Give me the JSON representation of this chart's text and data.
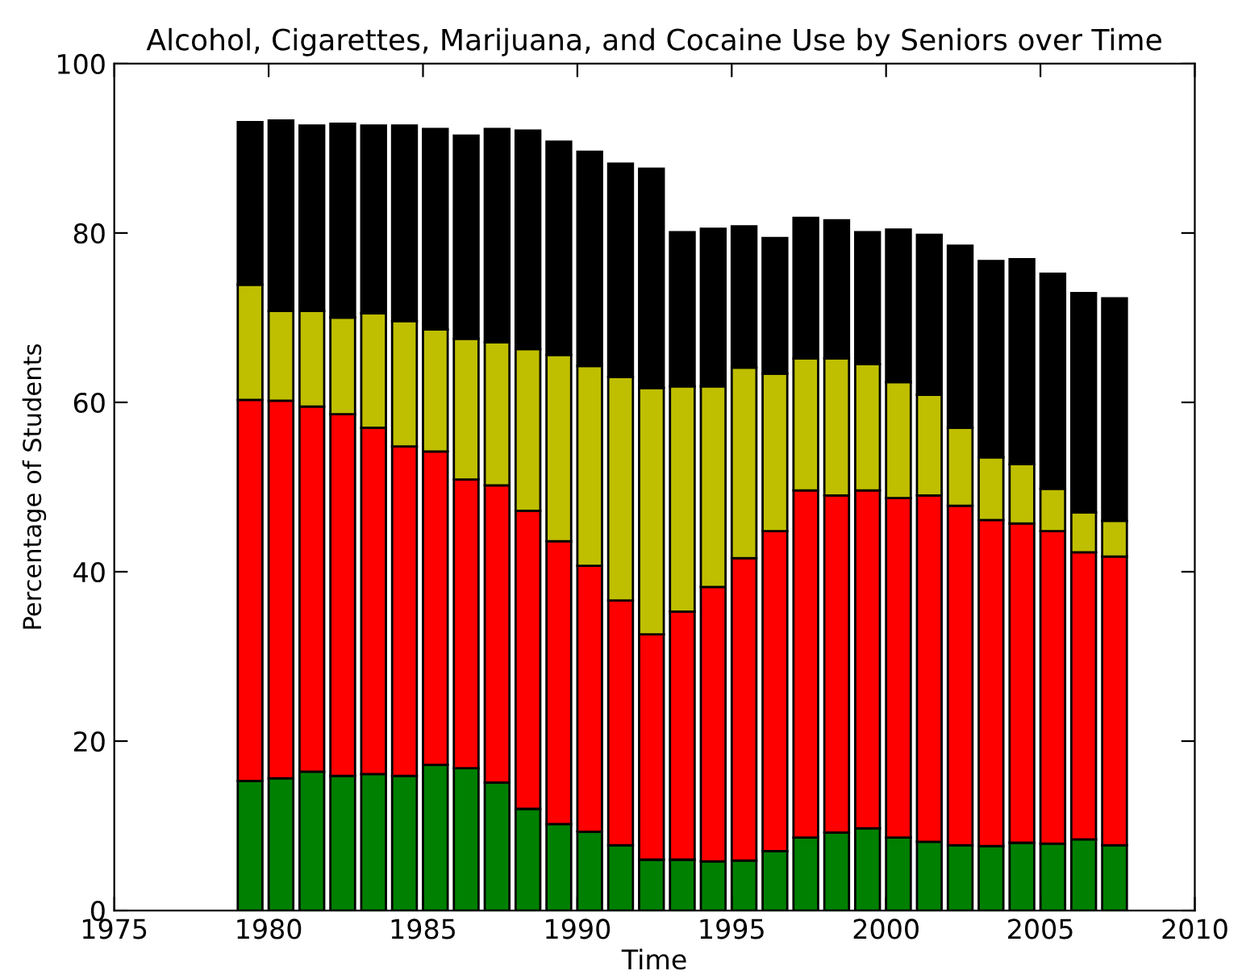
{
  "chart_data": {
    "type": "bar",
    "stacked": true,
    "title": "Alcohol, Cigarettes, Marijuana, and Cocaine Use by Seniors over Time",
    "xlabel": "Time",
    "ylabel": "Percentage of Students",
    "x": [
      1979.4,
      1980.4,
      1981.4,
      1982.4,
      1983.4,
      1984.4,
      1985.4,
      1986.4,
      1987.4,
      1988.4,
      1989.4,
      1990.4,
      1991.4,
      1992.4,
      1993.4,
      1994.4,
      1995.4,
      1996.4,
      1997.4,
      1998.4,
      1999.4,
      2000.4,
      2001.4,
      2002.4,
      2003.4,
      2004.4,
      2005.4,
      2006.4,
      2007.4
    ],
    "series": [
      {
        "color": "#008000",
        "values": [
          15.3,
          15.6,
          16.4,
          15.9,
          16.1,
          15.9,
          17.2,
          16.8,
          15.1,
          12.0,
          10.2,
          9.3,
          7.7,
          6.0,
          6.0,
          5.8,
          5.9,
          7.0,
          8.6,
          9.2,
          9.7,
          8.6,
          8.1,
          7.7,
          7.6,
          8.0,
          7.9,
          8.4,
          7.7
        ]
      },
      {
        "color": "#ff0000",
        "values": [
          45.0,
          44.6,
          43.1,
          42.7,
          40.9,
          38.9,
          37.0,
          34.1,
          35.1,
          35.2,
          33.4,
          31.4,
          28.9,
          26.6,
          29.3,
          32.4,
          35.7,
          37.8,
          41.0,
          39.8,
          39.9,
          40.1,
          40.9,
          40.1,
          38.5,
          37.7,
          36.9,
          33.9,
          34.1
        ]
      },
      {
        "color": "#bfbf00",
        "values": [
          13.6,
          10.6,
          11.3,
          11.4,
          13.5,
          14.8,
          14.4,
          16.6,
          16.9,
          19.1,
          22.0,
          23.6,
          26.4,
          29.1,
          26.6,
          23.7,
          22.5,
          18.6,
          15.6,
          16.2,
          14.9,
          13.7,
          11.9,
          9.2,
          7.4,
          7.0,
          5.0,
          4.7,
          4.2
        ]
      },
      {
        "color": "#000000",
        "values": [
          19.2,
          22.5,
          21.9,
          22.9,
          22.2,
          23.1,
          23.7,
          24.0,
          25.2,
          25.8,
          25.2,
          25.3,
          25.2,
          25.9,
          18.2,
          18.6,
          16.7,
          16.0,
          16.6,
          16.3,
          15.6,
          18.0,
          18.9,
          21.5,
          23.2,
          24.2,
          25.4,
          25.9,
          26.3
        ]
      }
    ],
    "xlim": [
      1975,
      2010
    ],
    "xticks": [
      1975,
      1980,
      1985,
      1990,
      1995,
      2000,
      2005,
      2010
    ],
    "ylim": [
      0,
      100
    ],
    "yticks": [
      0,
      20,
      40,
      60,
      80,
      100
    ],
    "grid": false
  }
}
